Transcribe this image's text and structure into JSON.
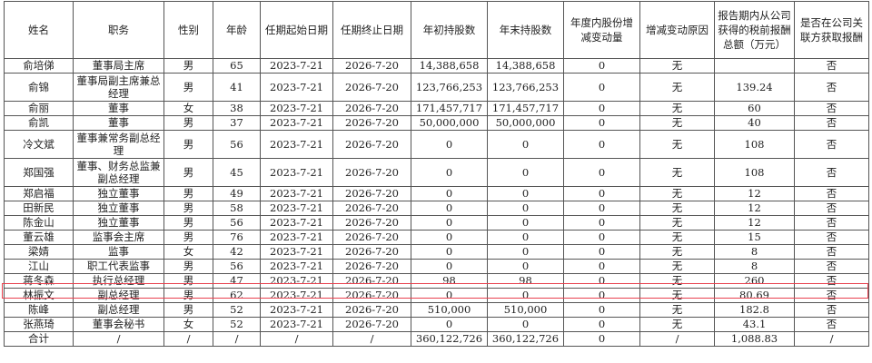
{
  "columns": [
    "姓名",
    "职务",
    "性别",
    "年龄",
    "任期起始日期",
    "任期终止日期",
    "年初持股数",
    "年末持股数",
    "年度内股份增减变动量",
    "增减变动原因",
    "报告期内从公司获得的税前报酬总额（万元）",
    "是否在公司关联方获取报酬"
  ],
  "rows": [
    [
      "俞培俤",
      "董事局主席",
      "男",
      "65",
      "2023-7-21",
      "2026-7-20",
      "14,388,658",
      "14,388,658",
      "0",
      "无",
      "",
      "否"
    ],
    [
      "俞锦",
      "董事局副主席兼总经理",
      "男",
      "41",
      "2023-7-21",
      "2026-7-20",
      "123,766,253",
      "123,766,253",
      "0",
      "无",
      "139.24",
      "否"
    ],
    [
      "俞丽",
      "董事",
      "女",
      "38",
      "2023-7-21",
      "2026-7-20",
      "171,457,717",
      "171,457,717",
      "0",
      "无",
      "60",
      "否"
    ],
    [
      "俞凯",
      "董事",
      "男",
      "37",
      "2023-7-21",
      "2026-7-20",
      "50,000,000",
      "50,000,000",
      "0",
      "无",
      "40",
      "否"
    ],
    [
      "冷文斌",
      "董事兼常务副总经理",
      "男",
      "56",
      "2023-7-21",
      "2026-7-20",
      "0",
      "0",
      "0",
      "无",
      "108",
      "否"
    ],
    [
      "郑国强",
      "董事、财务总监兼副总经理",
      "男",
      "45",
      "2023-7-21",
      "2026-7-20",
      "0",
      "0",
      "0",
      "无",
      "108",
      "否"
    ],
    [
      "郑启福",
      "独立董事",
      "男",
      "49",
      "2023-7-21",
      "2026-7-20",
      "0",
      "0",
      "0",
      "无",
      "12",
      "否"
    ],
    [
      "田新民",
      "独立董事",
      "男",
      "58",
      "2023-7-21",
      "2026-7-20",
      "0",
      "0",
      "0",
      "无",
      "12",
      "否"
    ],
    [
      "陈金山",
      "独立董事",
      "男",
      "56",
      "2023-7-21",
      "2026-7-20",
      "0",
      "0",
      "0",
      "无",
      "12",
      "否"
    ],
    [
      "董云雄",
      "监事会主席",
      "男",
      "76",
      "2023-7-21",
      "2026-7-20",
      "0",
      "0",
      "0",
      "无",
      "15",
      "否"
    ],
    [
      "梁婧",
      "监事",
      "女",
      "42",
      "2023-7-21",
      "2026-7-20",
      "0",
      "0",
      "0",
      "无",
      "8",
      "否"
    ],
    [
      "江山",
      "职工代表监事",
      "男",
      "56",
      "2023-7-21",
      "2026-7-20",
      "0",
      "0",
      "0",
      "无",
      "8",
      "否"
    ],
    [
      "蒋冬森",
      "执行总经理",
      "男",
      "47",
      "2023-7-21",
      "2026-7-20",
      "98",
      "98",
      "0",
      "无",
      "260",
      "否"
    ],
    [
      "林振文",
      "副总经理",
      "男",
      "62",
      "2023-7-21",
      "2026-7-20",
      "0",
      "0",
      "0",
      "无",
      "80.69",
      "否"
    ],
    [
      "陈峰",
      "副总经理",
      "男",
      "52",
      "2023-7-21",
      "2026-7-20",
      "510,000",
      "510,000",
      "0",
      "无",
      "182.8",
      "否"
    ],
    [
      "张燕琦",
      "董事会秘书",
      "女",
      "52",
      "2023-7-21",
      "2026-7-20",
      "0",
      "0",
      "0",
      "无",
      "43.1",
      "否"
    ],
    [
      "合计",
      "/",
      "/",
      "/",
      "/",
      "/",
      "360,122,726",
      "360,122,726",
      "0",
      "/",
      "1,088.83",
      "/"
    ]
  ],
  "highlight_color": "#e8414f"
}
